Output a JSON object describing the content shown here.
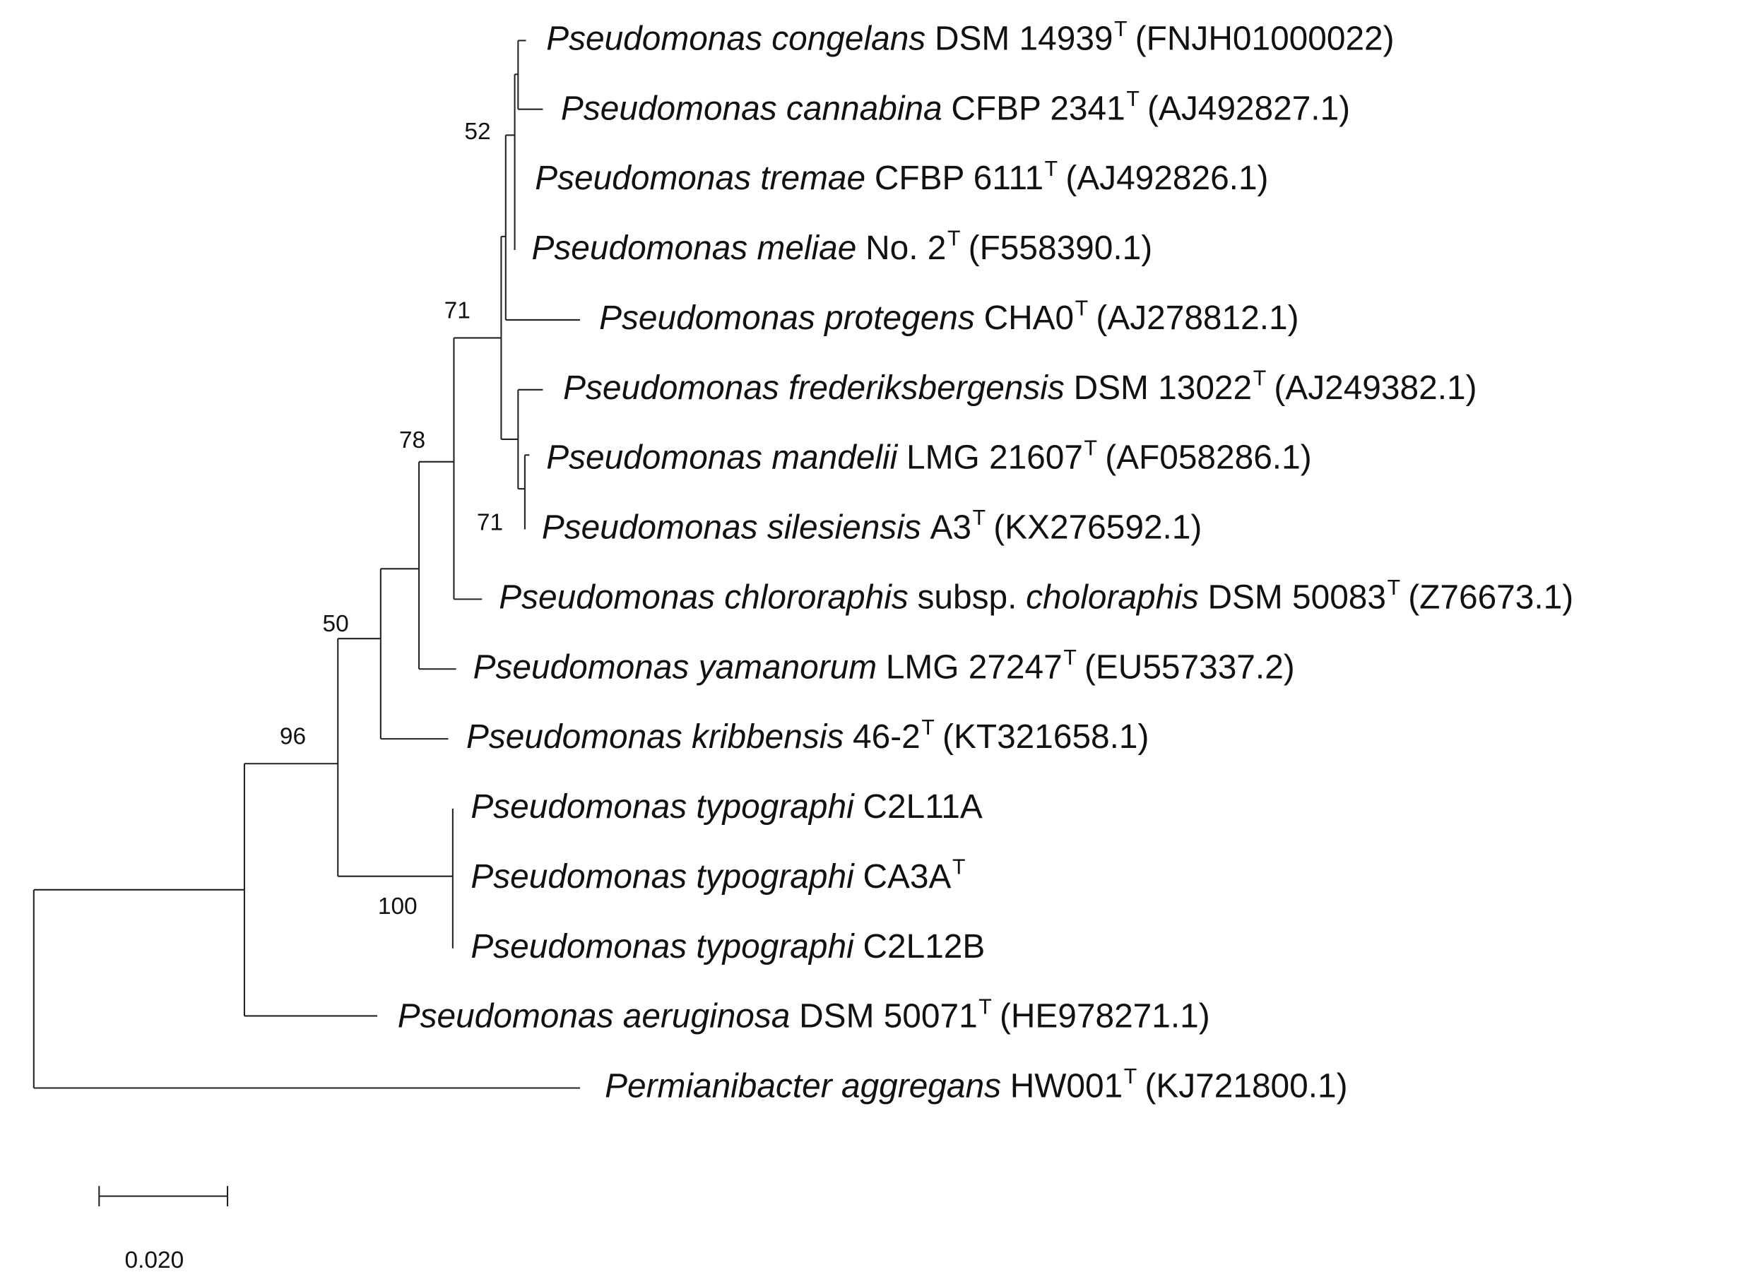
{
  "leaves": [
    {
      "parts": [
        {
          "text": "Pseudomonas congelans",
          "style": "italic"
        },
        {
          "text": "DSM 14939",
          "style": "normal"
        },
        {
          "text": "T",
          "style": "sup"
        },
        {
          "text": "(FNJH01000022)",
          "style": "normal"
        }
      ]
    },
    {
      "parts": [
        {
          "text": "Pseudomonas cannabina",
          "style": "italic"
        },
        {
          "text": "CFBP 2341",
          "style": "normal"
        },
        {
          "text": "T",
          "style": "sup"
        },
        {
          "text": "(AJ492827.1)",
          "style": "normal"
        }
      ]
    },
    {
      "parts": [
        {
          "text": "Pseudomonas tremae",
          "style": "italic"
        },
        {
          "text": "CFBP 6111",
          "style": "normal"
        },
        {
          "text": "T",
          "style": "sup"
        },
        {
          "text": "(AJ492826.1)",
          "style": "normal"
        }
      ]
    },
    {
      "parts": [
        {
          "text": "Pseudomonas meliae",
          "style": "italic"
        },
        {
          "text": "No. 2",
          "style": "normal"
        },
        {
          "text": "T",
          "style": "sup"
        },
        {
          "text": "(F558390.1)",
          "style": "normal"
        }
      ]
    },
    {
      "parts": [
        {
          "text": "Pseudomonas protegens",
          "style": "italic"
        },
        {
          "text": "CHA0",
          "style": "normal"
        },
        {
          "text": "T",
          "style": "sup"
        },
        {
          "text": "(AJ278812.1)",
          "style": "normal"
        }
      ]
    },
    {
      "parts": [
        {
          "text": "Pseudomonas frederiksbergensis",
          "style": "italic"
        },
        {
          "text": "DSM 13022",
          "style": "normal"
        },
        {
          "text": "T",
          "style": "sup"
        },
        {
          "text": "(AJ249382.1)",
          "style": "normal"
        }
      ]
    },
    {
      "parts": [
        {
          "text": "Pseudomonas mandelii",
          "style": "italic"
        },
        {
          "text": "LMG 21607",
          "style": "normal"
        },
        {
          "text": "T",
          "style": "sup"
        },
        {
          "text": "(AF058286.1)",
          "style": "normal"
        }
      ]
    },
    {
      "parts": [
        {
          "text": "Pseudomonas silesiensis",
          "style": "italic"
        },
        {
          "text": "A3",
          "style": "normal"
        },
        {
          "text": "T",
          "style": "sup"
        },
        {
          "text": "(KX276592.1)",
          "style": "normal"
        }
      ]
    },
    {
      "parts": [
        {
          "text": "Pseudomonas chlororaphis",
          "style": "italic"
        },
        {
          "text": "subsp.",
          "style": "normal"
        },
        {
          "text": "choloraphis",
          "style": "italic"
        },
        {
          "text": "DSM 50083",
          "style": "normal"
        },
        {
          "text": "T",
          "style": "sup"
        },
        {
          "text": "(Z76673.1)",
          "style": "normal"
        }
      ]
    },
    {
      "parts": [
        {
          "text": "Pseudomonas yamanorum",
          "style": "italic"
        },
        {
          "text": "LMG 27247",
          "style": "normal"
        },
        {
          "text": "T",
          "style": "sup"
        },
        {
          "text": "(EU557337.2)",
          "style": "normal"
        }
      ]
    },
    {
      "parts": [
        {
          "text": "Pseudomonas kribbensis",
          "style": "italic"
        },
        {
          "text": "46-2",
          "style": "normal"
        },
        {
          "text": "T",
          "style": "sup"
        },
        {
          "text": "(KT321658.1)",
          "style": "normal"
        }
      ]
    },
    {
      "parts": [
        {
          "text": "Pseudomonas typographi",
          "style": "italic"
        },
        {
          "text": "C2L11A",
          "style": "normal"
        }
      ]
    },
    {
      "parts": [
        {
          "text": "Pseudomonas typographi",
          "style": "italic"
        },
        {
          "text": "CA3A",
          "style": "normal"
        },
        {
          "text": "T",
          "style": "sup"
        }
      ]
    },
    {
      "parts": [
        {
          "text": "Pseudomonas typographi",
          "style": "italic"
        },
        {
          "text": "C2L12B",
          "style": "normal"
        }
      ]
    },
    {
      "parts": [
        {
          "text": "Pseudomonas aeruginosa",
          "style": "italic"
        },
        {
          "text": "DSM 50071",
          "style": "normal"
        },
        {
          "text": "T",
          "style": "sup"
        },
        {
          "text": "(HE978271.1)",
          "style": "normal"
        }
      ]
    },
    {
      "parts": [
        {
          "text": "Permianibacter aggregans",
          "style": "italic"
        },
        {
          "text": "HW001",
          "style": "normal"
        },
        {
          "text": "T",
          "style": "sup"
        },
        {
          "text": "(KJ721800.1)",
          "style": "normal"
        }
      ]
    }
  ],
  "bootstraps": [
    52,
    71,
    78,
    50,
    96,
    71,
    100
  ],
  "scale_bar": {
    "label": "0.020"
  }
}
